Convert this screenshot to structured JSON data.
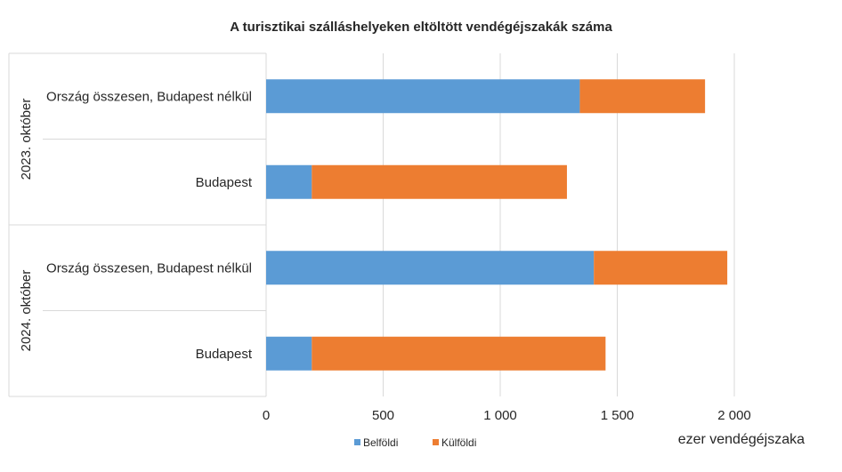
{
  "chart_data": {
    "type": "bar",
    "orientation": "horizontal",
    "stacked": true,
    "title": "A turisztikai szálláshelyeken eltöltött vendégéjszakák száma",
    "xlabel": "ezer vendégéjszaka",
    "xlim": [
      0,
      2000
    ],
    "xticks": [
      0,
      500,
      1000,
      1500,
      2000
    ],
    "xtick_labels": [
      "0",
      "500",
      "1 000",
      "1 500",
      "2 000"
    ],
    "grid": true,
    "legend_position": "bottom",
    "groups": [
      {
        "label": "2023. október",
        "categories": [
          "Ország összesen, Budapest nélkül",
          "Budapest"
        ]
      },
      {
        "label": "2024. október",
        "categories": [
          "Ország összesen, Budapest nélkül",
          "Budapest"
        ]
      }
    ],
    "series": [
      {
        "name": "Belföldi",
        "color": "#5B9BD5",
        "values": [
          1340,
          195,
          1400,
          195
        ]
      },
      {
        "name": "Külföldi",
        "color": "#ED7D31",
        "values": [
          535,
          1090,
          570,
          1255
        ]
      }
    ]
  }
}
